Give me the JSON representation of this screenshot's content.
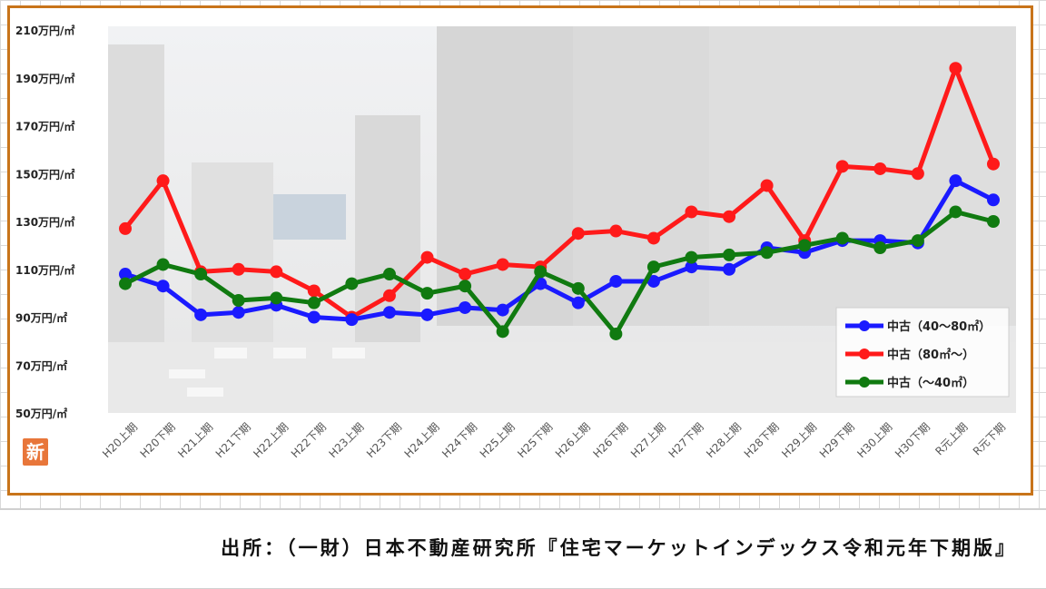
{
  "chart_data": {
    "type": "line",
    "categories": [
      "H20上期",
      "H20下期",
      "H21上期",
      "H21下期",
      "H22上期",
      "H22下期",
      "H23上期",
      "H23下期",
      "H24上期",
      "H24下期",
      "H25上期",
      "H25下期",
      "H26上期",
      "H26下期",
      "H27上期",
      "H27下期",
      "H28上期",
      "H28下期",
      "H29上期",
      "H29下期",
      "H30上期",
      "H30下期",
      "R元上期",
      "R元下期"
    ],
    "ylim": [
      50,
      210
    ],
    "yticks": [
      50,
      70,
      90,
      110,
      130,
      150,
      170,
      190,
      210
    ],
    "ytick_labels": [
      "50万円/㎡",
      "70万円/㎡",
      "90万円/㎡",
      "110万円/㎡",
      "130万円/㎡",
      "150万円/㎡",
      "170万円/㎡",
      "190万円/㎡",
      "210万円/㎡"
    ],
    "legend_position": "bottom-right",
    "series": [
      {
        "name": "中古（40～80㎡）",
        "color": "#1a1aff",
        "values": [
          108,
          103,
          91,
          92,
          95,
          90,
          89,
          92,
          91,
          94,
          93,
          104,
          96,
          105,
          105,
          111,
          110,
          119,
          117,
          122,
          122,
          121,
          147,
          139
        ]
      },
      {
        "name": "中古（80㎡～）",
        "color": "#ff1a1a",
        "values": [
          127,
          147,
          109,
          110,
          109,
          101,
          90,
          99,
          115,
          108,
          112,
          111,
          125,
          126,
          123,
          134,
          132,
          145,
          122,
          153,
          152,
          150,
          194,
          154
        ]
      },
      {
        "name": "中古（～40㎡）",
        "color": "#107a10",
        "values": [
          104,
          112,
          108,
          97,
          98,
          96,
          104,
          108,
          100,
          103,
          84,
          109,
          102,
          83,
          111,
          115,
          116,
          117,
          120,
          123,
          119,
          122,
          134,
          130
        ]
      }
    ]
  },
  "badge": {
    "label": "新"
  },
  "source": {
    "text": "出所：（一財）日本不動産研究所『住宅マーケットインデックス令和元年下期版』"
  }
}
